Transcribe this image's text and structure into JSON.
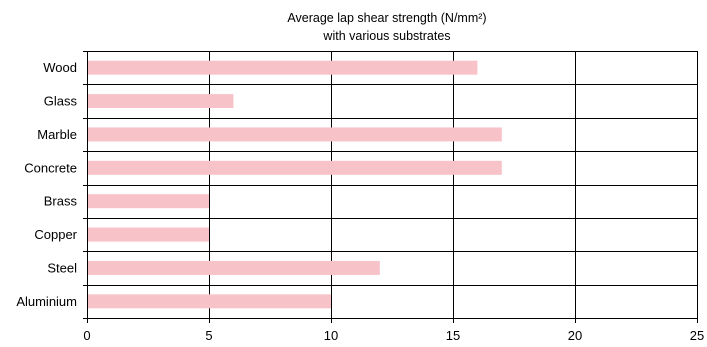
{
  "chart_data": {
    "type": "bar",
    "orientation": "horizontal",
    "title": "Average lap shear strength (N/mm²)",
    "subtitle": "with various substrates",
    "categories": [
      "Wood",
      "Glass",
      "Marble",
      "Concrete",
      "Brass",
      "Copper",
      "Steel",
      "Aluminium"
    ],
    "values": [
      16,
      6,
      17,
      17,
      5,
      5,
      12,
      10
    ],
    "xlim": [
      0,
      25
    ],
    "x_ticks": [
      0,
      5,
      10,
      15,
      20,
      25
    ],
    "xlabel": "",
    "ylabel": "",
    "grid": true,
    "bar_color": "#f7c2c8"
  }
}
